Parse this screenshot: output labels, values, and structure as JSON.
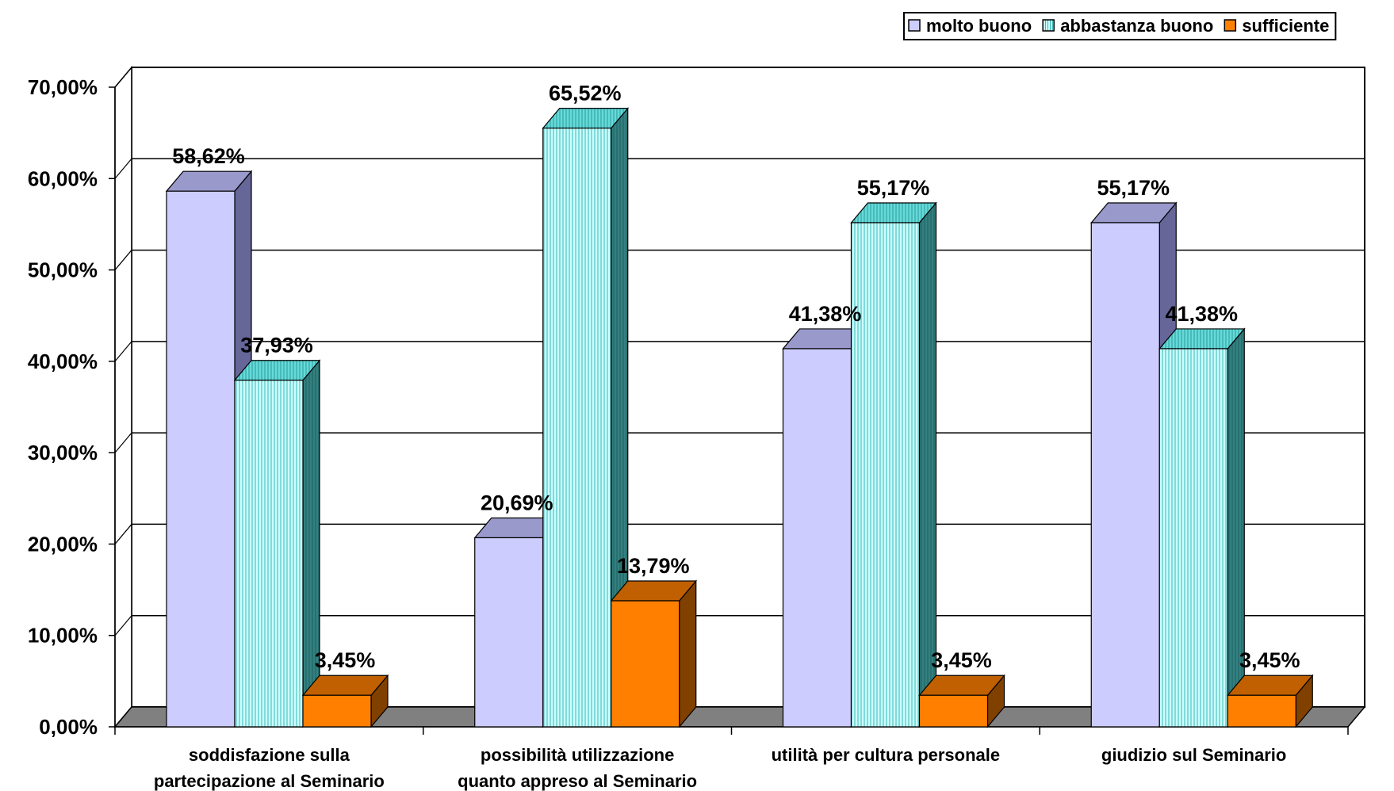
{
  "chart_data": {
    "type": "bar",
    "categories": [
      [
        "soddisfazione sulla",
        "partecipazione al Seminario"
      ],
      [
        "possibilità utilizzazione",
        "quanto appreso al Seminario"
      ],
      [
        "utilità per cultura personale"
      ],
      [
        "giudizio sul Seminario"
      ]
    ],
    "series": [
      {
        "name": "molto buono",
        "values": [
          58.62,
          20.69,
          41.38,
          55.17
        ],
        "labels": [
          "58,62%",
          "20,69%",
          "41,38%",
          "55,17%"
        ],
        "color": "#ccccff"
      },
      {
        "name": "abbastanza buono",
        "values": [
          37.93,
          65.52,
          55.17,
          41.38
        ],
        "labels": [
          "37,93%",
          "65,52%",
          "55,17%",
          "41,38%"
        ],
        "color": "#ccffff"
      },
      {
        "name": "sufficiente",
        "values": [
          3.45,
          13.79,
          3.45,
          3.45
        ],
        "labels": [
          "3,45%",
          "13,79%",
          "3,45%",
          "3,45%"
        ],
        "color": "#ff8000"
      }
    ],
    "ylim": [
      0,
      70
    ],
    "yticks": [
      0,
      10,
      20,
      30,
      40,
      50,
      60,
      70
    ],
    "ytick_labels": [
      "0,00%",
      "10,00%",
      "20,00%",
      "30,00%",
      "40,00%",
      "50,00%",
      "60,00%",
      "70,00%"
    ],
    "grid": true,
    "legend_position": "top-right",
    "title": "",
    "xlabel": "",
    "ylabel": ""
  }
}
